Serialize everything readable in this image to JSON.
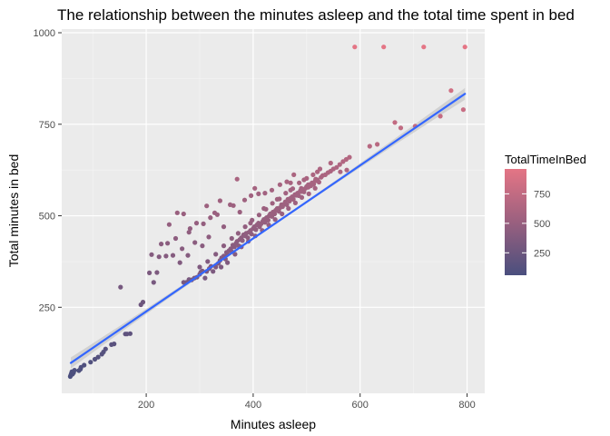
{
  "chart_data": {
    "type": "scatter",
    "title": "The relationship between the minutes asleep and the total time spent in bed",
    "xlabel": "Minutes asleep",
    "ylabel": "Total minutes in bed",
    "xlim": [
      42,
      833
    ],
    "ylim": [
      15,
      1010
    ],
    "x_ticks": [
      {
        "value": 200,
        "label": "200"
      },
      {
        "value": 400,
        "label": "400"
      },
      {
        "value": 600,
        "label": "600"
      },
      {
        "value": 800,
        "label": "800"
      }
    ],
    "y_ticks": [
      {
        "value": 250,
        "label": "250"
      },
      {
        "value": 500,
        "label": "500"
      },
      {
        "value": 750,
        "label": "750"
      },
      {
        "value": 1000,
        "label": "1000"
      }
    ],
    "grid": true,
    "panel_background": "#ebebeb",
    "legend": {
      "title": "TotalTimeInBed",
      "position": "right",
      "type": "colorbar",
      "breaks": [
        {
          "value": 750,
          "label": "750"
        },
        {
          "value": 500,
          "label": "500"
        },
        {
          "value": 250,
          "label": "250"
        }
      ],
      "range": [
        60,
        961
      ],
      "color_low": "#4a4f7e",
      "color_high": "#e47585"
    },
    "trend_line": {
      "method": "linear regression with confidence band",
      "color": "#3366ff",
      "band_color": "#c8c8c8",
      "x": [
        59,
        796
      ],
      "y": [
        98,
        833
      ]
    },
    "points": [
      [
        58,
        61
      ],
      [
        59,
        65
      ],
      [
        60,
        69
      ],
      [
        61,
        74
      ],
      [
        62,
        67
      ],
      [
        64,
        71
      ],
      [
        66,
        78
      ],
      [
        74,
        77
      ],
      [
        77,
        81
      ],
      [
        78,
        86
      ],
      [
        84,
        92
      ],
      [
        96,
        100
      ],
      [
        104,
        108
      ],
      [
        110,
        114
      ],
      [
        117,
        122
      ],
      [
        120,
        128
      ],
      [
        124,
        136
      ],
      [
        135,
        148
      ],
      [
        140,
        150
      ],
      [
        161,
        177
      ],
      [
        164,
        177
      ],
      [
        170,
        178
      ],
      [
        152,
        305
      ],
      [
        190,
        257
      ],
      [
        194,
        264
      ],
      [
        206,
        344
      ],
      [
        210,
        394
      ],
      [
        214,
        318
      ],
      [
        220,
        345
      ],
      [
        224,
        388
      ],
      [
        228,
        423
      ],
      [
        237,
        390
      ],
      [
        240,
        425
      ],
      [
        243,
        476
      ],
      [
        250,
        392
      ],
      [
        255,
        438
      ],
      [
        258,
        508
      ],
      [
        263,
        372
      ],
      [
        267,
        410
      ],
      [
        270,
        505
      ],
      [
        278,
        392
      ],
      [
        280,
        455
      ],
      [
        282,
        465
      ],
      [
        291,
        427
      ],
      [
        294,
        480
      ],
      [
        305,
        418
      ],
      [
        307,
        478
      ],
      [
        313,
        527
      ],
      [
        317,
        442
      ],
      [
        320,
        495
      ],
      [
        328,
        508
      ],
      [
        333,
        503
      ],
      [
        338,
        541
      ],
      [
        345,
        470
      ],
      [
        357,
        530
      ],
      [
        363,
        528
      ],
      [
        370,
        600
      ],
      [
        375,
        510
      ],
      [
        384,
        543
      ],
      [
        396,
        555
      ],
      [
        403,
        575
      ],
      [
        410,
        560
      ],
      [
        422,
        562
      ],
      [
        435,
        570
      ],
      [
        450,
        585
      ],
      [
        463,
        593
      ],
      [
        470,
        590
      ],
      [
        476,
        612
      ],
      [
        490,
        575
      ],
      [
        503,
        585
      ],
      [
        517,
        600
      ],
      [
        545,
        644
      ],
      [
        563,
        620
      ],
      [
        575,
        625
      ],
      [
        618,
        690
      ],
      [
        632,
        695
      ],
      [
        665,
        755
      ],
      [
        676,
        740
      ],
      [
        703,
        745
      ],
      [
        750,
        772
      ],
      [
        770,
        842
      ],
      [
        793,
        790
      ],
      [
        590,
        961
      ],
      [
        644,
        961
      ],
      [
        719,
        961
      ],
      [
        796,
        961
      ],
      [
        270,
        318
      ],
      [
        275,
        318
      ],
      [
        280,
        326
      ],
      [
        285,
        325
      ],
      [
        290,
        330
      ],
      [
        295,
        332
      ],
      [
        300,
        340
      ],
      [
        302,
        346
      ],
      [
        305,
        349
      ],
      [
        310,
        330
      ],
      [
        313,
        348
      ],
      [
        318,
        356
      ],
      [
        321,
        362
      ],
      [
        325,
        348
      ],
      [
        330,
        360
      ],
      [
        335,
        370
      ],
      [
        338,
        378
      ],
      [
        341,
        385
      ],
      [
        345,
        390
      ],
      [
        348,
        382
      ],
      [
        350,
        400
      ],
      [
        352,
        395
      ],
      [
        355,
        405
      ],
      [
        358,
        410
      ],
      [
        360,
        402
      ],
      [
        362,
        420
      ],
      [
        365,
        415
      ],
      [
        368,
        425
      ],
      [
        370,
        430
      ],
      [
        373,
        418
      ],
      [
        375,
        435
      ],
      [
        378,
        440
      ],
      [
        380,
        432
      ],
      [
        382,
        448
      ],
      [
        385,
        445
      ],
      [
        387,
        452
      ],
      [
        390,
        440
      ],
      [
        392,
        455
      ],
      [
        395,
        460
      ],
      [
        397,
        450
      ],
      [
        400,
        465
      ],
      [
        402,
        470
      ],
      [
        405,
        462
      ],
      [
        407,
        475
      ],
      [
        410,
        480
      ],
      [
        412,
        470
      ],
      [
        415,
        478
      ],
      [
        418,
        485
      ],
      [
        420,
        490
      ],
      [
        422,
        482
      ],
      [
        425,
        495
      ],
      [
        428,
        488
      ],
      [
        430,
        500
      ],
      [
        432,
        505
      ],
      [
        435,
        498
      ],
      [
        437,
        510
      ],
      [
        440,
        505
      ],
      [
        442,
        515
      ],
      [
        445,
        520
      ],
      [
        448,
        512
      ],
      [
        450,
        522
      ],
      [
        453,
        530
      ],
      [
        455,
        525
      ],
      [
        458,
        532
      ],
      [
        460,
        538
      ],
      [
        463,
        530
      ],
      [
        465,
        545
      ],
      [
        468,
        540
      ],
      [
        470,
        548
      ],
      [
        473,
        552
      ],
      [
        475,
        545
      ],
      [
        478,
        558
      ],
      [
        480,
        556
      ],
      [
        483,
        562
      ],
      [
        485,
        555
      ],
      [
        488,
        568
      ],
      [
        490,
        566
      ],
      [
        493,
        572
      ],
      [
        495,
        565
      ],
      [
        498,
        575
      ],
      [
        500,
        580
      ],
      [
        503,
        578
      ],
      [
        505,
        585
      ],
      [
        508,
        582
      ],
      [
        510,
        590
      ],
      [
        513,
        586
      ],
      [
        516,
        595
      ],
      [
        520,
        598
      ],
      [
        523,
        592
      ],
      [
        527,
        605
      ],
      [
        530,
        610
      ],
      [
        535,
        612
      ],
      [
        540,
        618
      ],
      [
        545,
        622
      ],
      [
        550,
        628
      ],
      [
        556,
        632
      ],
      [
        562,
        640
      ],
      [
        568,
        648
      ],
      [
        574,
        654
      ],
      [
        580,
        660
      ],
      [
        340,
        360
      ],
      [
        352,
        372
      ],
      [
        366,
        395
      ],
      [
        378,
        415
      ],
      [
        391,
        430
      ],
      [
        404,
        445
      ],
      [
        417,
        460
      ],
      [
        429,
        475
      ],
      [
        441,
        490
      ],
      [
        454,
        505
      ],
      [
        466,
        520
      ],
      [
        479,
        535
      ],
      [
        491,
        550
      ],
      [
        504,
        560
      ],
      [
        516,
        575
      ],
      [
        360,
        438
      ],
      [
        372,
        452
      ],
      [
        385,
        470
      ],
      [
        398,
        488
      ],
      [
        411,
        502
      ],
      [
        424,
        518
      ],
      [
        436,
        534
      ],
      [
        449,
        546
      ],
      [
        461,
        562
      ],
      [
        474,
        574
      ],
      [
        486,
        590
      ],
      [
        500,
        602
      ],
      [
        512,
        612
      ],
      [
        525,
        628
      ],
      [
        300,
        360
      ],
      [
        315,
        375
      ],
      [
        330,
        395
      ],
      [
        345,
        418
      ],
      [
        395,
        480
      ],
      [
        420,
        520
      ],
      [
        445,
        545
      ],
      [
        470,
        570
      ],
      [
        495,
        598
      ],
      [
        520,
        620
      ]
    ]
  }
}
